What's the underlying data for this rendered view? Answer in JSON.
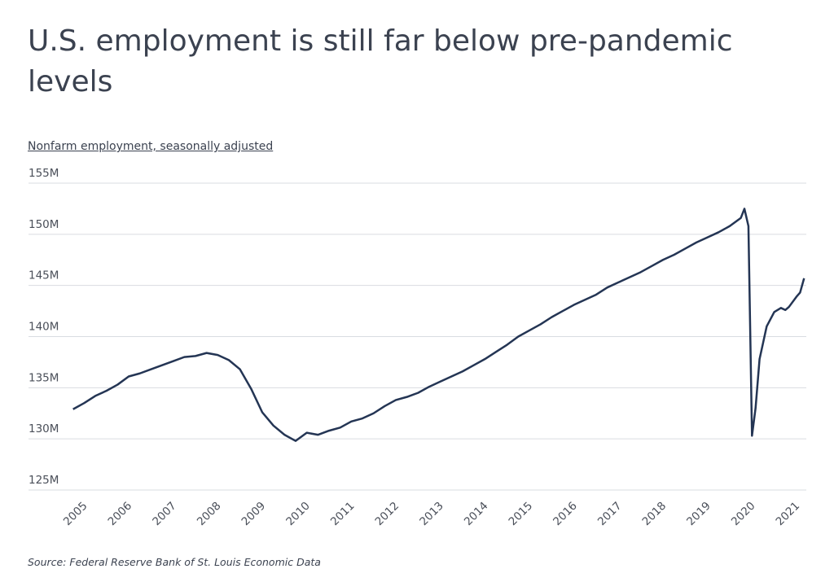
{
  "chart_data": {
    "type": "line",
    "title": "U.S. employment is still far below pre-pandemic levels",
    "subtitle": "Nonfarm employment, seasonally adjusted",
    "source": "Source: Federal Reserve Bank of St. Louis Economic Data",
    "color": "#243554",
    "grid": true,
    "x": [
      2005.0,
      2005.25,
      2005.5,
      2005.75,
      2006.0,
      2006.25,
      2006.5,
      2006.75,
      2007.0,
      2007.25,
      2007.5,
      2007.75,
      2008.0,
      2008.25,
      2008.5,
      2008.75,
      2009.0,
      2009.25,
      2009.5,
      2009.75,
      2010.0,
      2010.25,
      2010.5,
      2010.75,
      2011.0,
      2011.25,
      2011.5,
      2011.75,
      2012.0,
      2012.25,
      2012.5,
      2012.75,
      2013.0,
      2013.25,
      2013.5,
      2013.75,
      2014.0,
      2014.25,
      2014.5,
      2014.75,
      2015.0,
      2015.25,
      2015.5,
      2015.75,
      2016.0,
      2016.25,
      2016.5,
      2016.75,
      2017.0,
      2017.25,
      2017.5,
      2017.75,
      2018.0,
      2018.25,
      2018.5,
      2018.75,
      2019.0,
      2019.25,
      2019.5,
      2019.75,
      2020.0,
      2020.08,
      2020.17,
      2020.25,
      2020.33,
      2020.42,
      2020.58,
      2020.75,
      2020.9,
      2021.0,
      2021.08,
      2021.25,
      2021.33,
      2021.42
    ],
    "values": [
      132.9,
      133.5,
      134.2,
      134.7,
      135.3,
      136.1,
      136.4,
      136.8,
      137.2,
      137.6,
      138.0,
      138.1,
      138.4,
      138.2,
      137.7,
      136.8,
      134.9,
      132.6,
      131.3,
      130.4,
      129.8,
      130.6,
      130.4,
      130.8,
      131.1,
      131.7,
      132.0,
      132.5,
      133.2,
      133.8,
      134.1,
      134.5,
      135.1,
      135.6,
      136.1,
      136.6,
      137.2,
      137.8,
      138.5,
      139.2,
      140.0,
      140.6,
      141.2,
      141.9,
      142.5,
      143.1,
      143.6,
      144.1,
      144.8,
      145.3,
      145.8,
      146.3,
      146.9,
      147.5,
      148.0,
      148.6,
      149.2,
      149.7,
      150.2,
      150.8,
      151.6,
      152.5,
      150.8,
      130.3,
      133.0,
      137.8,
      141.0,
      142.4,
      142.8,
      142.6,
      142.9,
      143.9,
      144.3,
      145.7
    ],
    "xlim": [
      2004.0,
      2021.47
    ],
    "xticks": [
      2005,
      2006,
      2007,
      2008,
      2009,
      2010,
      2011,
      2012,
      2013,
      2014,
      2015,
      2016,
      2017,
      2018,
      2019,
      2020,
      2021
    ],
    "ylim": [
      125,
      155
    ],
    "yticks": [
      {
        "value": 125,
        "label": "125M"
      },
      {
        "value": 130,
        "label": "130M"
      },
      {
        "value": 135,
        "label": "135M"
      },
      {
        "value": 140,
        "label": "140M"
      },
      {
        "value": 145,
        "label": "145M"
      },
      {
        "value": 150,
        "label": "150M"
      },
      {
        "value": 155,
        "label": "155M"
      }
    ]
  }
}
